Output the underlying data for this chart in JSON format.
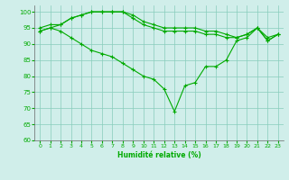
{
  "xlabel": "Humidité relative (%)",
  "x": [
    0,
    1,
    2,
    3,
    4,
    5,
    6,
    7,
    8,
    9,
    10,
    11,
    12,
    13,
    14,
    15,
    16,
    17,
    18,
    19,
    20,
    21,
    22,
    23
  ],
  "line1": [
    94,
    95,
    96,
    98,
    99,
    100,
    100,
    100,
    100,
    99,
    97,
    96,
    95,
    95,
    95,
    95,
    94,
    94,
    93,
    92,
    93,
    95,
    92,
    93
  ],
  "line2": [
    95,
    96,
    96,
    98,
    99,
    100,
    100,
    100,
    100,
    98,
    96,
    95,
    94,
    94,
    94,
    94,
    93,
    93,
    92,
    92,
    93,
    95,
    91,
    93
  ],
  "line3": [
    94,
    95,
    94,
    92,
    90,
    88,
    87,
    86,
    84,
    82,
    80,
    79,
    76,
    69,
    77,
    78,
    83,
    83,
    85,
    91,
    92,
    95,
    91,
    93
  ],
  "bg_color": "#d0eeea",
  "grid_color": "#88ccbb",
  "line_color": "#00aa00",
  "marker": "+",
  "ylim": [
    60,
    102
  ],
  "yticks": [
    60,
    65,
    70,
    75,
    80,
    85,
    90,
    95,
    100
  ],
  "xticks": [
    0,
    1,
    2,
    3,
    4,
    5,
    6,
    7,
    8,
    9,
    10,
    11,
    12,
    13,
    14,
    15,
    16,
    17,
    18,
    19,
    20,
    21,
    22,
    23
  ],
  "xticklabels": [
    "0",
    "1",
    "2",
    "3",
    "4",
    "5",
    "6",
    "7",
    "8",
    "9",
    "10",
    "11",
    "12",
    "13",
    "14",
    "15",
    "16",
    "17",
    "18",
    "19",
    "20",
    "21",
    "22",
    "23"
  ]
}
